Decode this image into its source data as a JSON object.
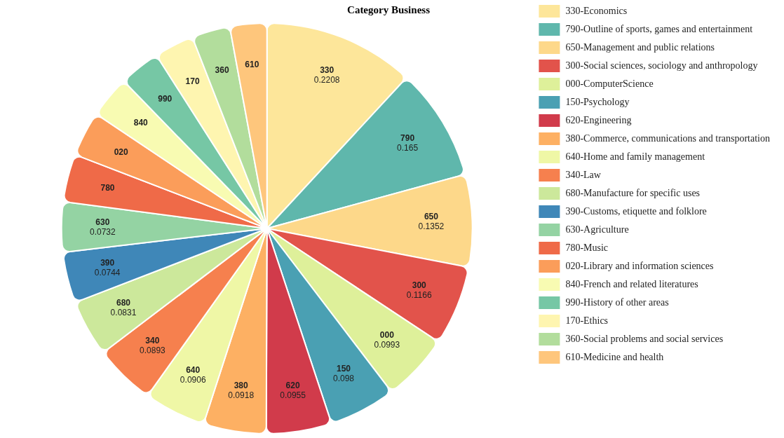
{
  "chart_data": {
    "type": "pie",
    "title": "Category Business",
    "categories": [
      "330-Economics",
      "790-Outline of sports, games and entertainment",
      "650-Management and public relations",
      "300-Social sciences, sociology and anthropology",
      "000-ComputerScience",
      "150-Psychology",
      "620-Engineering",
      "380-Commerce, communications and transportation",
      "640-Home and family management",
      "340-Law",
      "680-Manufacture for specific uses",
      "390-Customs, etiquette and folklore",
      "630-Agriculture",
      "780-Music",
      "020-Library and information sciences",
      "840-French and related literatures",
      "990-History of other areas",
      "170-Ethics",
      "360-Social problems and social services",
      "610-Medicine and health"
    ],
    "values": [
      0.2208,
      0.165,
      0.1352,
      0.1166,
      0.0993,
      0.098,
      0.0955,
      0.0918,
      0.0906,
      0.0893,
      0.0831,
      0.0744,
      0.0732,
      0.07,
      0.066,
      0.062,
      0.06,
      0.058,
      0.056,
      0.054
    ],
    "value_labels": [
      "0.2208",
      "0.165",
      "0.1352",
      "0.1166",
      "0.0993",
      "0.098",
      "0.0955",
      "0.0918",
      "0.0906",
      "0.0893",
      "0.0831",
      "0.0744",
      "0.0732",
      null,
      null,
      null,
      null,
      null,
      null,
      null
    ],
    "annotations": [
      {
        "text": "330",
        "x": "330-Economics"
      },
      {
        "text": "790",
        "x": "790-Outline of sports, games and entertainment"
      },
      {
        "text": "650",
        "x": "650-Management and public relations"
      },
      {
        "text": "300",
        "x": "300-Social sciences, sociology and anthropology"
      },
      {
        "text": "000",
        "x": "000-ComputerScience"
      },
      {
        "text": "150",
        "x": "150-Psychology"
      },
      {
        "text": "620",
        "x": "620-Engineering"
      },
      {
        "text": "380",
        "x": "380-Commerce, communications and transportation"
      },
      {
        "text": "640",
        "x": "640-Home and family management"
      },
      {
        "text": "340",
        "x": "340-Law"
      },
      {
        "text": "680",
        "x": "680-Manufacture for specific uses"
      },
      {
        "text": "390",
        "x": "390-Customs, etiquette and folklore"
      },
      {
        "text": "630",
        "x": "630-Agriculture"
      },
      {
        "text": "780",
        "x": "780-Music"
      },
      {
        "text": "020",
        "x": "020-Library and information sciences"
      },
      {
        "text": "840",
        "x": "840-French and related literatures"
      },
      {
        "text": "990",
        "x": "990-History of other areas"
      },
      {
        "text": "170",
        "x": "170-Ethics"
      },
      {
        "text": "360",
        "x": "360-Social problems and social services"
      },
      {
        "text": "610",
        "x": "610-Medicine and health"
      }
    ],
    "colors": [
      "#fde69a",
      "#5fb7ac",
      "#fdd88a",
      "#e2534b",
      "#def09a",
      "#4aa0b3",
      "#d13b4b",
      "#fdb063",
      "#eff7a6",
      "#f6804e",
      "#cce89b",
      "#3f87b8",
      "#94d3a3",
      "#ef6a48",
      "#fb9d5a",
      "#f8fbb2",
      "#76c7a5",
      "#fef5b0",
      "#b2dd9c",
      "#fec67c"
    ],
    "legend": "right"
  }
}
